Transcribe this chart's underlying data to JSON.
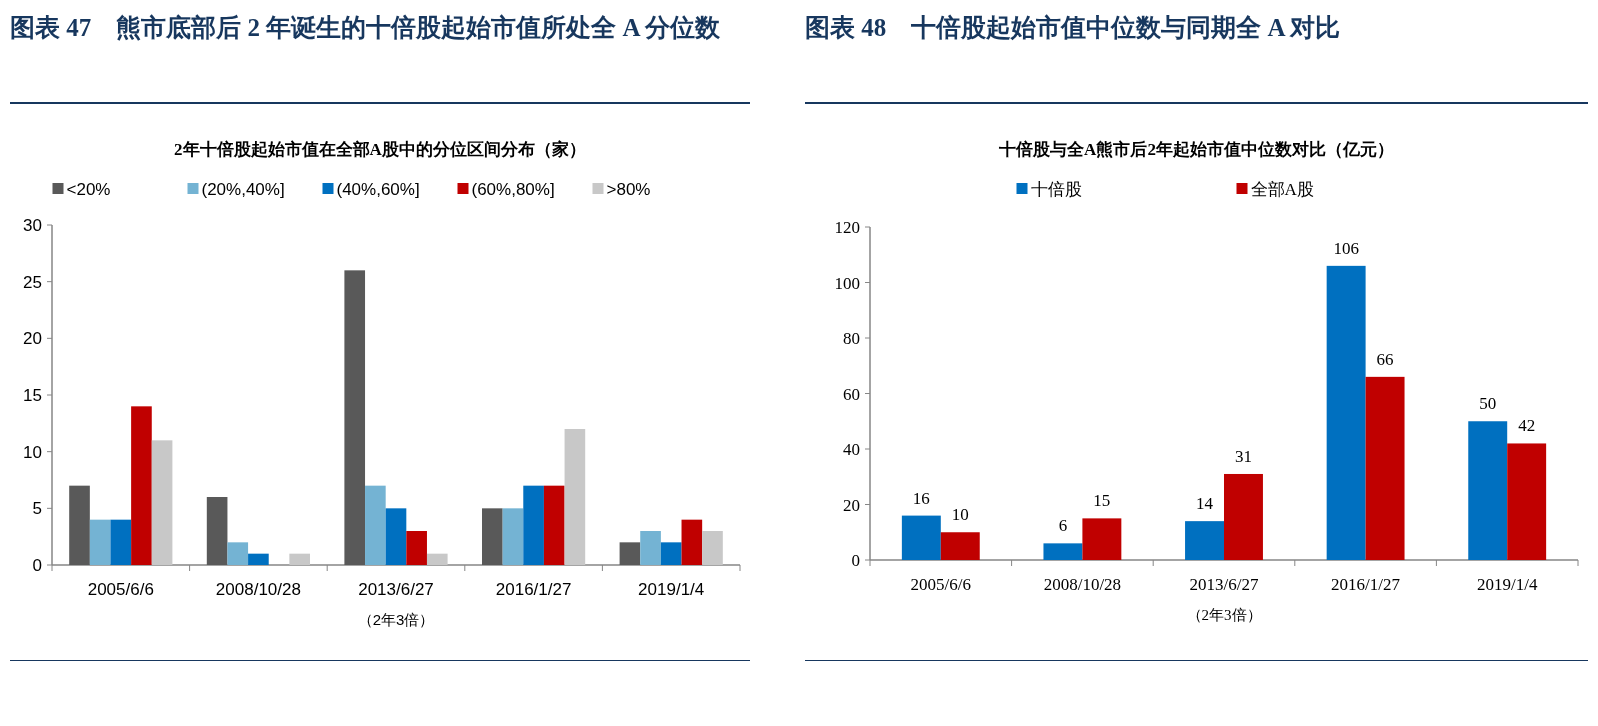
{
  "chart_data": [
    {
      "type": "bar",
      "title": "图表 47　熊市底部后 2 年诞生的十倍股起始市值所处全 A 分位数",
      "subtitle": "2年十倍股起始市值在全部A股中的分位区间分布（家）",
      "xlabel": "（2年3倍）",
      "categories": [
        "2005/6/6",
        "2008/10/28",
        "2013/6/27",
        "2016/1/27",
        "2019/1/4"
      ],
      "series": [
        {
          "name": "<20%",
          "color": "#595959",
          "values": [
            7,
            6,
            26,
            5,
            2
          ]
        },
        {
          "name": "(20%,40%]",
          "color": "#74b3d3",
          "values": [
            4,
            2,
            7,
            5,
            3
          ]
        },
        {
          "name": "(40%,60%]",
          "color": "#0070c0",
          "values": [
            4,
            1,
            5,
            7,
            2
          ]
        },
        {
          "name": "(60%,80%]",
          "color": "#c00000",
          "values": [
            14,
            0,
            3,
            7,
            4
          ]
        },
        {
          "name": ">80%",
          "color": "#c8c8c8",
          "values": [
            11,
            1,
            1,
            12,
            3
          ]
        }
      ],
      "ylim": [
        0,
        30
      ],
      "yticks": [
        0,
        5,
        10,
        15,
        20,
        25,
        30
      ],
      "legend": "top",
      "grid": false
    },
    {
      "type": "bar",
      "title": "图表 48　十倍股起始市值中位数与同期全 A 对比",
      "subtitle": "十倍股与全A熊市后2年起始市值中位数对比（亿元）",
      "xlabel": "（2年3倍）",
      "categories": [
        "2005/6/6",
        "2008/10/28",
        "2013/6/27",
        "2016/1/27",
        "2019/1/4"
      ],
      "series": [
        {
          "name": "十倍股",
          "color": "#0070c0",
          "values": [
            16,
            6,
            14,
            106,
            50
          ]
        },
        {
          "name": "全部A股",
          "color": "#c00000",
          "values": [
            10,
            15,
            31,
            66,
            42
          ]
        }
      ],
      "ylim": [
        0,
        120
      ],
      "yticks": [
        0,
        20,
        40,
        60,
        80,
        100,
        120
      ],
      "legend": "top",
      "grid": false,
      "data_labels": true
    }
  ]
}
